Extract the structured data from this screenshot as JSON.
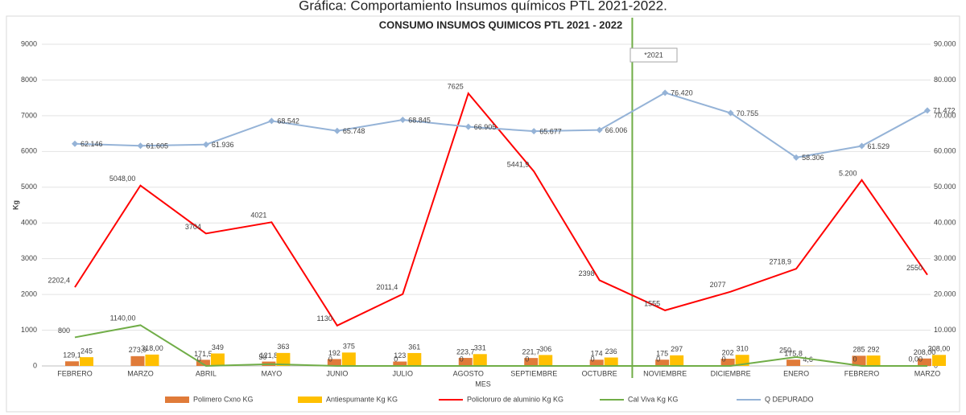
{
  "caption": "Gráfica: Comportamiento Insumos químicos PTL 2021-2022.",
  "chart_data": {
    "type": "combo",
    "title": "CONSUMO INSUMOS QUIMICOS PTL 2021 - 2022",
    "y_label": "Kg",
    "x_label": "MES",
    "annotation": "*2021",
    "categories": [
      "FEBRERO",
      "MARZO",
      "ABRIL",
      "MAYO",
      "JUNIO",
      "JULIO",
      "AGOSTO",
      "SEPTIEMBRE",
      "OCTUBRE",
      "NOVIEMBRE",
      "DICIEMBRE",
      "ENERO",
      "FEBRERO",
      "MARZO"
    ],
    "ylim": [
      0,
      9000
    ],
    "yticks": [
      0,
      1000,
      2000,
      3000,
      4000,
      5000,
      6000,
      7000,
      8000,
      9000
    ],
    "y2lim": [
      0,
      90000
    ],
    "y2ticks": [
      {
        "value": 0,
        "label": "0"
      },
      {
        "value": 10000,
        "label": "10.000"
      },
      {
        "value": 20000,
        "label": "20.000"
      },
      {
        "value": 30000,
        "label": "30.000"
      },
      {
        "value": 40000,
        "label": "40.000"
      },
      {
        "value": 50000,
        "label": "50.000"
      },
      {
        "value": 60000,
        "label": "60.000"
      },
      {
        "value": 70000,
        "label": "70.000"
      },
      {
        "value": 80000,
        "label": "80.000"
      },
      {
        "value": 90000,
        "label": "90.000"
      }
    ],
    "grid": true,
    "series": [
      {
        "name": "Polimero Cxno KG",
        "kind": "bar",
        "color": "#e07b39",
        "values": [
          129.1,
          273.9,
          171.5,
          121.8,
          192,
          123,
          223.7,
          221.7,
          174,
          175,
          202,
          175.8,
          285,
          208
        ],
        "value_labels": [
          "129,1",
          "273,9",
          "171,5",
          "121,8",
          "192",
          "123",
          "223,7",
          "221,7",
          "174",
          "175",
          "202",
          "175,8",
          "285",
          "208,00"
        ]
      },
      {
        "name": "Antiespumante Kg  KG",
        "kind": "bar",
        "color": "#ffc000",
        "values": [
          245,
          318,
          349,
          363,
          375,
          361,
          331,
          306,
          236,
          297,
          310,
          4.6,
          292,
          308
        ],
        "value_labels": [
          "245",
          "318,00",
          "349",
          "363",
          "375",
          "361",
          "331",
          "306",
          "236",
          "297",
          "310",
          "4,6",
          "292",
          "308,00"
        ]
      },
      {
        "name": "Policloruro de aluminio Kg KG",
        "kind": "line",
        "color": "#ff0000",
        "values": [
          2202.4,
          5048,
          3704,
          4021,
          1130,
          2011.4,
          7625,
          5441.9,
          2398,
          1555,
          2077,
          2718.9,
          5200,
          2550
        ],
        "value_labels": [
          "2202,4",
          "5048,00",
          "3704",
          "4021",
          "1130",
          "2011,4",
          "7625",
          "5441,9",
          "2398",
          "1555",
          "2077",
          "2718,9",
          "5.200",
          "2550"
        ]
      },
      {
        "name": "Cal Viva Kg KG",
        "kind": "line",
        "color": "#70ad47",
        "values": [
          800,
          1140,
          0,
          50,
          0,
          0,
          0,
          0,
          0,
          0,
          0,
          250,
          0,
          0
        ],
        "value_labels": [
          "800",
          "1140,00",
          "0",
          "50",
          "0",
          "0",
          "0",
          "0",
          "0",
          "0",
          "0",
          "250",
          "0",
          "0,00"
        ]
      },
      {
        "name": "Q DEPURADO",
        "kind": "line",
        "color": "#95b3d7",
        "axis": "y2",
        "values": [
          62146,
          61605,
          61936,
          68542,
          65748,
          68845,
          66905,
          65677,
          66006,
          76420,
          70755,
          58306,
          61529,
          71472
        ],
        "value_labels": [
          "62.146",
          "61.605",
          "61.936",
          "68.542",
          "65.748",
          "68.845",
          "66.905",
          "65.677",
          "66.006",
          "76.420",
          "70.755",
          "58.306",
          "61.529",
          "71.472"
        ]
      }
    ]
  }
}
